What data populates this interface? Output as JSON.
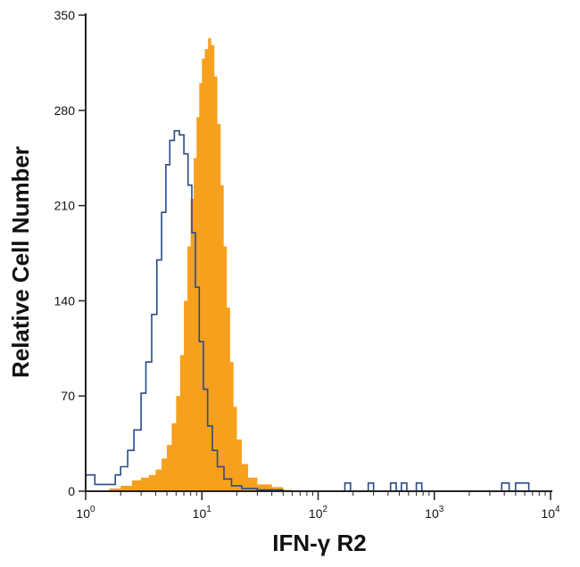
{
  "chart_data": {
    "type": "area",
    "x_scale": "log",
    "xlabel": "IFN-γ R2",
    "ylabel": "Relative Cell Number",
    "xlim": [
      1,
      10000
    ],
    "ylim": [
      0,
      350
    ],
    "y_ticks": [
      0,
      70,
      140,
      210,
      280,
      350
    ],
    "x_ticks": [
      {
        "base": "10",
        "exp": "0",
        "value": 1
      },
      {
        "base": "10",
        "exp": "1",
        "value": 10
      },
      {
        "base": "10",
        "exp": "2",
        "value": 100
      },
      {
        "base": "10",
        "exp": "3",
        "value": 1000
      },
      {
        "base": "10",
        "exp": "4",
        "value": 10000
      }
    ],
    "grid": false,
    "series": [
      {
        "style": "outline",
        "color": "#2a4a86",
        "points": [
          [
            1.0,
            12
          ],
          [
            1.2,
            5
          ],
          [
            1.6,
            5
          ],
          [
            1.8,
            12
          ],
          [
            2.0,
            18
          ],
          [
            2.3,
            30
          ],
          [
            2.6,
            45
          ],
          [
            3.0,
            72
          ],
          [
            3.3,
            95
          ],
          [
            3.7,
            130
          ],
          [
            4.1,
            170
          ],
          [
            4.5,
            205
          ],
          [
            4.9,
            240
          ],
          [
            5.3,
            258
          ],
          [
            5.8,
            265
          ],
          [
            6.4,
            262
          ],
          [
            7.0,
            248
          ],
          [
            7.6,
            225
          ],
          [
            8.2,
            190
          ],
          [
            8.8,
            150
          ],
          [
            9.5,
            110
          ],
          [
            10.3,
            75
          ],
          [
            11.2,
            48
          ],
          [
            12.3,
            30
          ],
          [
            13.6,
            18
          ],
          [
            15.5,
            9
          ],
          [
            18,
            4
          ],
          [
            22,
            2
          ],
          [
            30,
            1
          ],
          [
            50,
            0
          ],
          [
            150,
            0
          ],
          [
            170,
            6
          ],
          [
            190,
            0
          ],
          [
            240,
            0
          ],
          [
            270,
            6
          ],
          [
            300,
            0
          ],
          [
            420,
            6
          ],
          [
            470,
            0
          ],
          [
            520,
            6
          ],
          [
            580,
            0
          ],
          [
            700,
            6
          ],
          [
            780,
            0
          ],
          [
            3500,
            0
          ],
          [
            3800,
            6
          ],
          [
            4400,
            0
          ],
          [
            5000,
            6
          ],
          [
            6000,
            6
          ],
          [
            6500,
            0
          ]
        ]
      },
      {
        "style": "filled",
        "color": "#f7a01e",
        "points": [
          [
            1.3,
            0
          ],
          [
            1.6,
            2
          ],
          [
            2.0,
            4
          ],
          [
            2.5,
            8
          ],
          [
            3.0,
            10
          ],
          [
            3.5,
            12
          ],
          [
            4.0,
            16
          ],
          [
            4.5,
            24
          ],
          [
            5.0,
            34
          ],
          [
            5.5,
            50
          ],
          [
            6.0,
            70
          ],
          [
            6.5,
            100
          ],
          [
            7.0,
            140
          ],
          [
            7.5,
            180
          ],
          [
            8.0,
            215
          ],
          [
            8.5,
            245
          ],
          [
            9.0,
            275
          ],
          [
            9.5,
            300
          ],
          [
            10.0,
            318
          ],
          [
            10.6,
            325
          ],
          [
            11.3,
            333
          ],
          [
            12.0,
            328
          ],
          [
            12.8,
            305
          ],
          [
            13.6,
            270
          ],
          [
            14.5,
            225
          ],
          [
            15.4,
            180
          ],
          [
            16.4,
            135
          ],
          [
            17.5,
            95
          ],
          [
            18.7,
            62
          ],
          [
            20,
            38
          ],
          [
            22,
            20
          ],
          [
            25,
            10
          ],
          [
            30,
            5
          ],
          [
            40,
            3
          ],
          [
            50,
            1
          ],
          [
            60,
            0
          ]
        ]
      }
    ]
  }
}
